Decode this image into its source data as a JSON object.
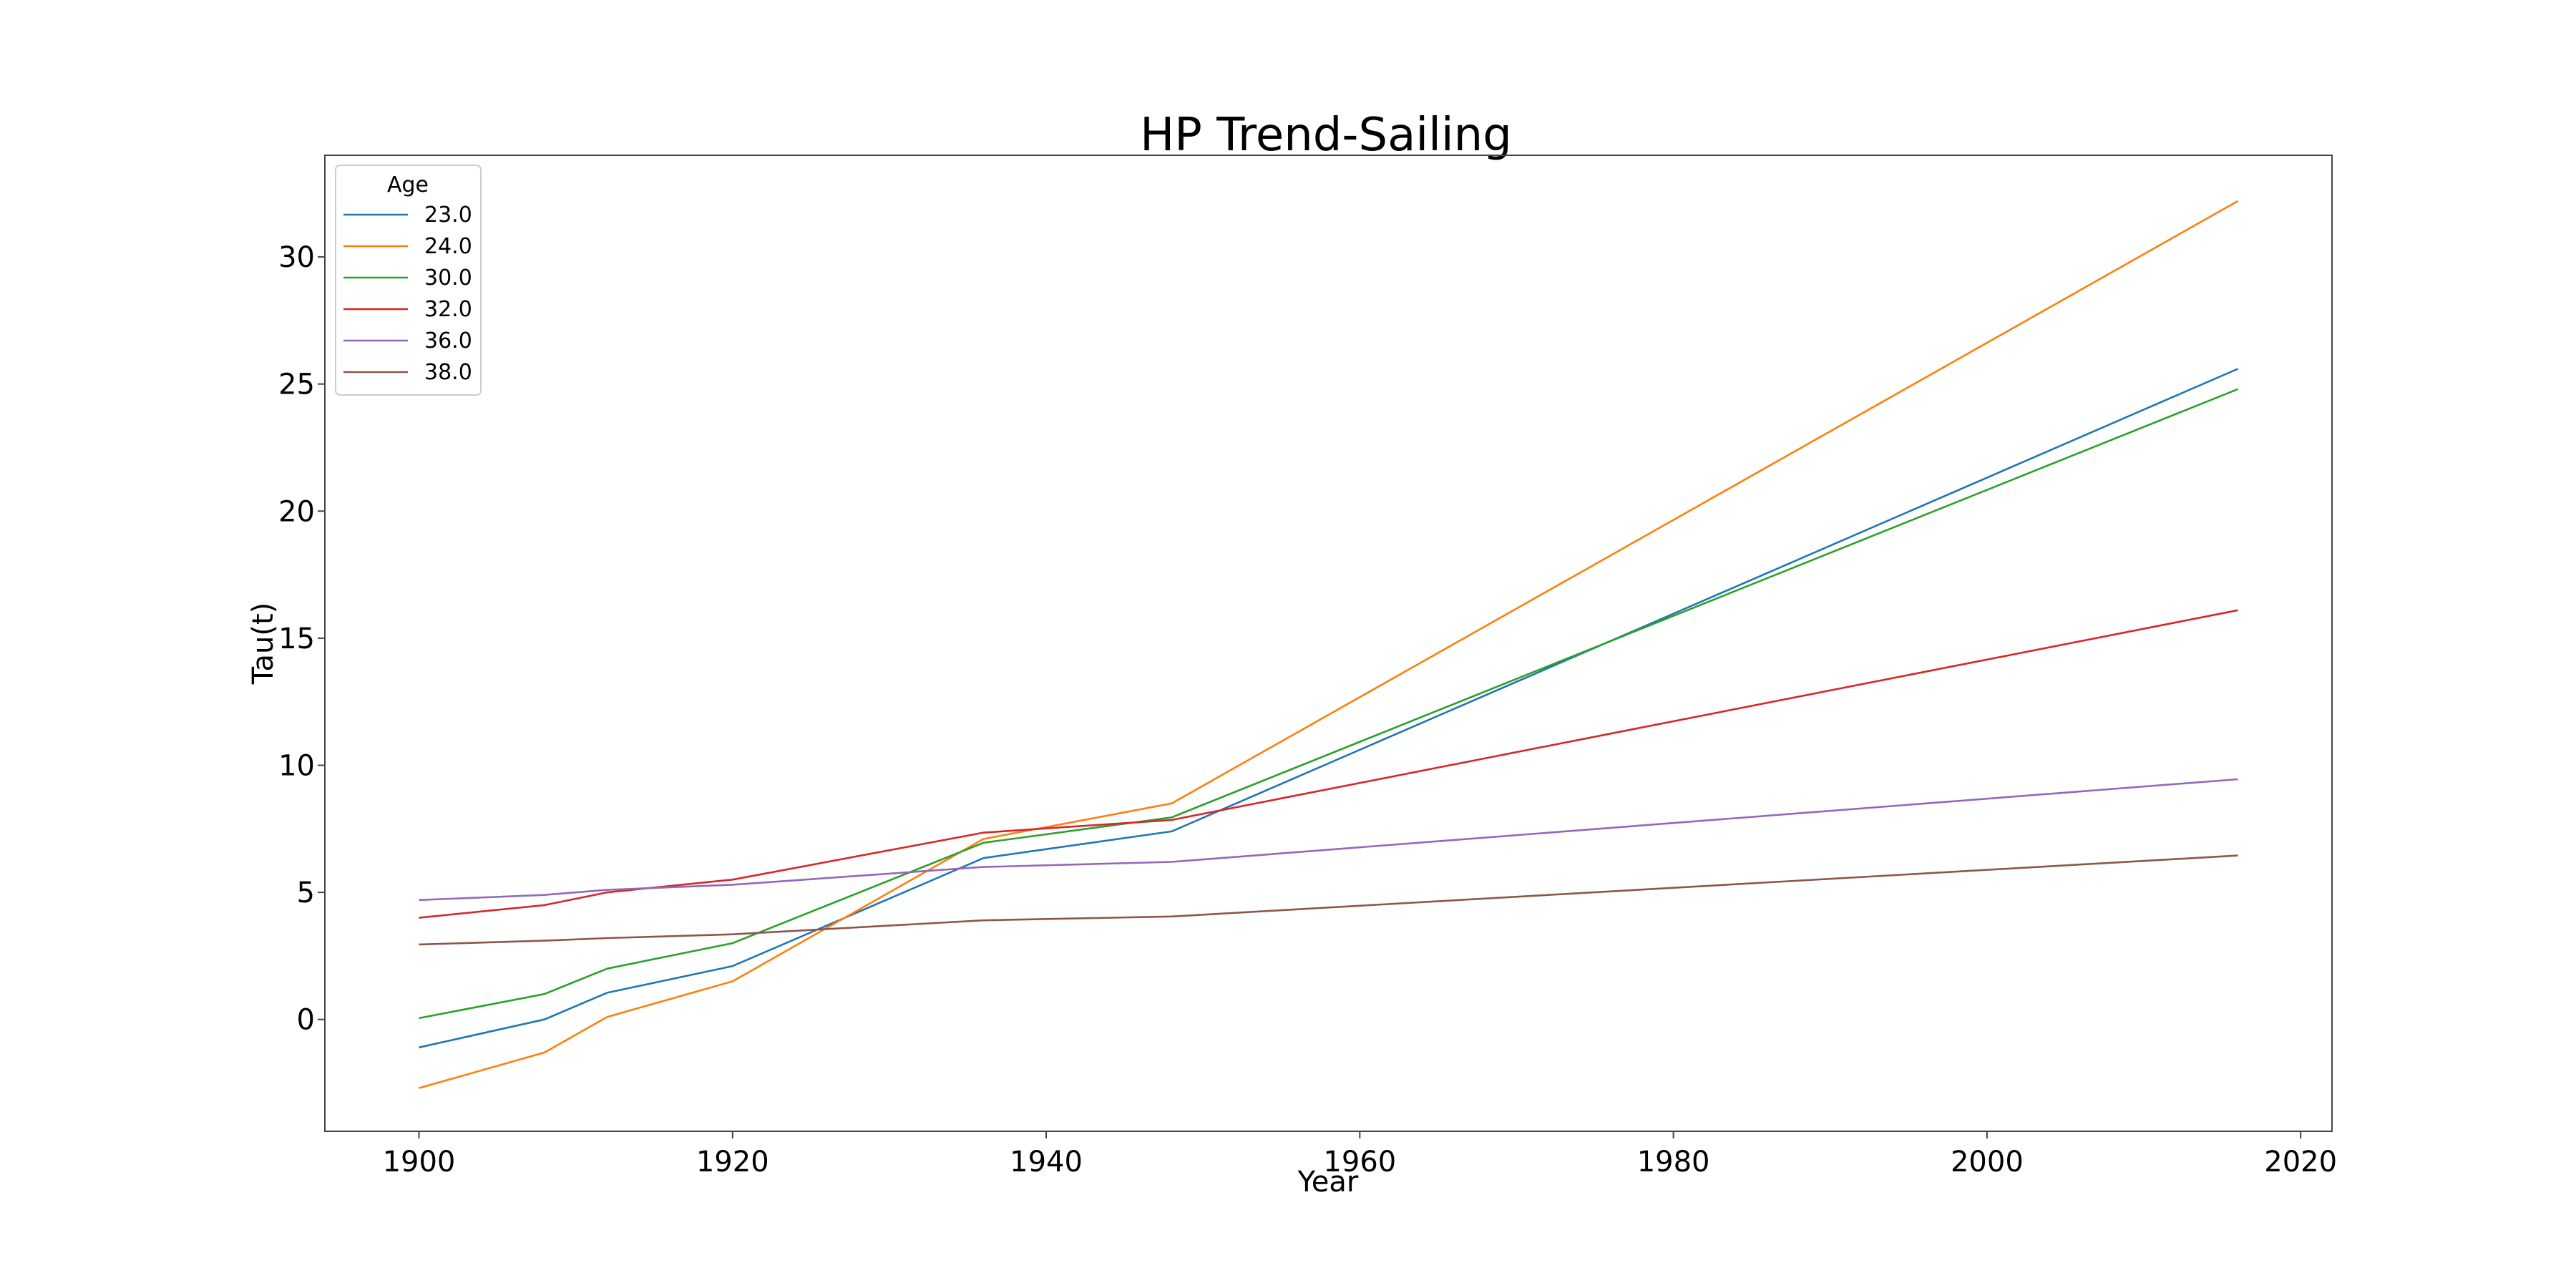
{
  "chart_data": {
    "type": "line",
    "title": "HP Trend-Sailing",
    "xlabel": "Year",
    "ylabel": "Tau(t)",
    "xlim": [
      1894,
      2022
    ],
    "ylim": [
      -4.4,
      34.0
    ],
    "xticks": [
      1900,
      1920,
      1940,
      1960,
      1980,
      2000,
      2020
    ],
    "yticks": [
      0,
      5,
      10,
      15,
      20,
      25,
      30
    ],
    "grid": false,
    "legend": {
      "title": "Age",
      "placement": "top-left"
    },
    "series": [
      {
        "name": "23.0",
        "color": "#1f77b4",
        "x": [
          1900,
          1908,
          1912,
          1920,
          1936,
          1948,
          2016
        ],
        "y": [
          -1.1,
          0.0,
          1.05,
          2.1,
          6.35,
          7.4,
          25.6
        ]
      },
      {
        "name": "24.0",
        "color": "#ff7f0e",
        "x": [
          1900,
          1908,
          1912,
          1920,
          1936,
          1948,
          2016
        ],
        "y": [
          -2.7,
          -1.3,
          0.1,
          1.5,
          7.1,
          8.5,
          32.2
        ]
      },
      {
        "name": "30.0",
        "color": "#2ca02c",
        "x": [
          1900,
          1908,
          1912,
          1920,
          1936,
          1948,
          2016
        ],
        "y": [
          0.05,
          1.0,
          2.0,
          3.0,
          6.95,
          7.95,
          24.8
        ]
      },
      {
        "name": "32.0",
        "color": "#d62728",
        "x": [
          1900,
          1908,
          1912,
          1920,
          1936,
          1948,
          2016
        ],
        "y": [
          4.0,
          4.5,
          5.0,
          5.5,
          7.35,
          7.85,
          16.1
        ]
      },
      {
        "name": "36.0",
        "color": "#9467bd",
        "x": [
          1900,
          1908,
          1912,
          1920,
          1936,
          1948,
          2016
        ],
        "y": [
          4.7,
          4.9,
          5.1,
          5.3,
          6.0,
          6.2,
          9.45
        ]
      },
      {
        "name": "38.0",
        "color": "#8c564b",
        "x": [
          1900,
          1908,
          1912,
          1920,
          1936,
          1948,
          2016
        ],
        "y": [
          2.95,
          3.1,
          3.2,
          3.35,
          3.9,
          4.05,
          6.45
        ]
      }
    ]
  }
}
